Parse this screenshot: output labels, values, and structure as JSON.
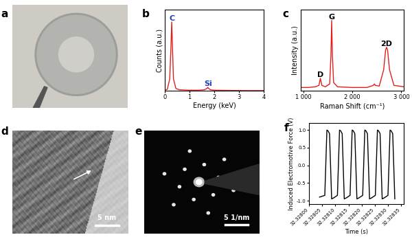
{
  "chart_data": [
    {
      "panel": "a",
      "type": "image"
    },
    {
      "panel": "b",
      "type": "line",
      "x_label": "Energy (keV)",
      "y_label": "Counts (a.u.)",
      "x": [
        0,
        0.1,
        0.2,
        0.25,
        0.28,
        0.31,
        0.35,
        0.45,
        0.6,
        0.8,
        1.0,
        1.2,
        1.4,
        1.6,
        1.7,
        1.74,
        1.78,
        1.85,
        2.0,
        2.5,
        3.0,
        3.5,
        4.0
      ],
      "values": [
        20,
        40,
        300,
        1100,
        1700,
        1100,
        300,
        60,
        30,
        25,
        20,
        20,
        20,
        30,
        60,
        90,
        60,
        30,
        20,
        15,
        12,
        10,
        10
      ],
      "color": "#e0201b",
      "xlim": [
        0,
        4
      ],
      "xticks": [
        0,
        1,
        2,
        3,
        4
      ],
      "ylim": [
        0,
        2000
      ],
      "tick_labels": "x",
      "annotations": [
        {
          "text": "C",
          "x": 0.28,
          "y": 1700,
          "color": "#1f3fbf"
        },
        {
          "text": "Si",
          "x": 1.74,
          "y": 90,
          "color": "#1f3fbf"
        }
      ]
    },
    {
      "panel": "c",
      "type": "line",
      "x_label": "Raman Shift (cm⁻¹)",
      "y_label": "Intensity (a.u.)",
      "x": [
        950,
        1100,
        1250,
        1320,
        1350,
        1380,
        1450,
        1540,
        1565,
        1580,
        1595,
        1620,
        1700,
        2000,
        2300,
        2430,
        2450,
        2470,
        2550,
        2640,
        2680,
        2700,
        2720,
        2760,
        2850,
        3050
      ],
      "values": [
        5,
        5,
        6,
        8,
        18,
        8,
        6,
        10,
        50,
        100,
        50,
        12,
        6,
        5,
        5,
        8,
        10,
        8,
        7,
        30,
        58,
        62,
        58,
        30,
        8,
        6
      ],
      "color": "#e0201b",
      "xlim": [
        950,
        3050
      ],
      "xticks": [
        {
          "value": 1000,
          "label": "1 000"
        },
        {
          "value": 2000,
          "label": "2 000"
        },
        {
          "value": 3000,
          "label": "3 000"
        }
      ],
      "ylim": [
        0,
        115
      ],
      "tick_labels": "x",
      "annotations": [
        {
          "text": "D",
          "x": 1350,
          "y": 18,
          "color": "#000000"
        },
        {
          "text": "G",
          "x": 1580,
          "y": 100,
          "color": "#000000"
        },
        {
          "text": "2D",
          "x": 2700,
          "y": 62,
          "color": "#000000"
        }
      ]
    },
    {
      "panel": "d",
      "type": "image",
      "scale_bar": "5 nm"
    },
    {
      "panel": "e",
      "type": "image",
      "scale_bar": "5 1/nm"
    },
    {
      "panel": "f",
      "type": "line",
      "x_label": "Time (s)",
      "y_label": "Induced Electromotive Force (V)",
      "x": [
        32.32804,
        32.32806,
        32.328068,
        32.328072,
        32.328078,
        32.328086,
        32.328094,
        32.328108,
        32.328116,
        32.32812,
        32.328126,
        32.328134,
        32.328142,
        32.328156,
        32.328164,
        32.328168,
        32.328174,
        32.328182,
        32.32819,
        32.328204,
        32.328212,
        32.328216,
        32.328222,
        32.32823,
        32.328238,
        32.328252,
        32.32826,
        32.328264,
        32.32827,
        32.328278,
        32.328286,
        32.3283,
        32.328308,
        32.328312,
        32.328318,
        32.328326
      ],
      "values": [
        -0.9,
        -0.85,
        1.0,
        0.98,
        0.9,
        -0.95,
        -0.92,
        -0.85,
        1.0,
        0.98,
        0.9,
        -0.95,
        -0.92,
        -0.85,
        1.0,
        0.98,
        0.9,
        -0.95,
        -0.92,
        -0.85,
        1.0,
        0.98,
        0.9,
        -0.95,
        -0.92,
        -0.85,
        1.0,
        0.98,
        0.9,
        -0.95,
        -0.92,
        -0.85,
        1.0,
        0.98,
        0.9,
        -0.95
      ],
      "color": "#000000",
      "xlim": [
        32.328,
        32.32836
      ],
      "xticks": [
        {
          "value": 32.328,
          "label": "32.32800"
        },
        {
          "value": 32.32805,
          "label": "32.32805"
        },
        {
          "value": 32.3281,
          "label": "32.32810"
        },
        {
          "value": 32.32815,
          "label": "32.32815"
        },
        {
          "value": 32.3282,
          "label": "32.32820"
        },
        {
          "value": 32.32825,
          "label": "32.32825"
        },
        {
          "value": 32.3283,
          "label": "32.32830"
        },
        {
          "value": 32.32835,
          "label": "32.32835"
        }
      ],
      "ylim": [
        -1.1,
        1.2
      ],
      "yticks": [
        -1.0,
        -0.5,
        0.0,
        0.5,
        1.0
      ]
    }
  ]
}
